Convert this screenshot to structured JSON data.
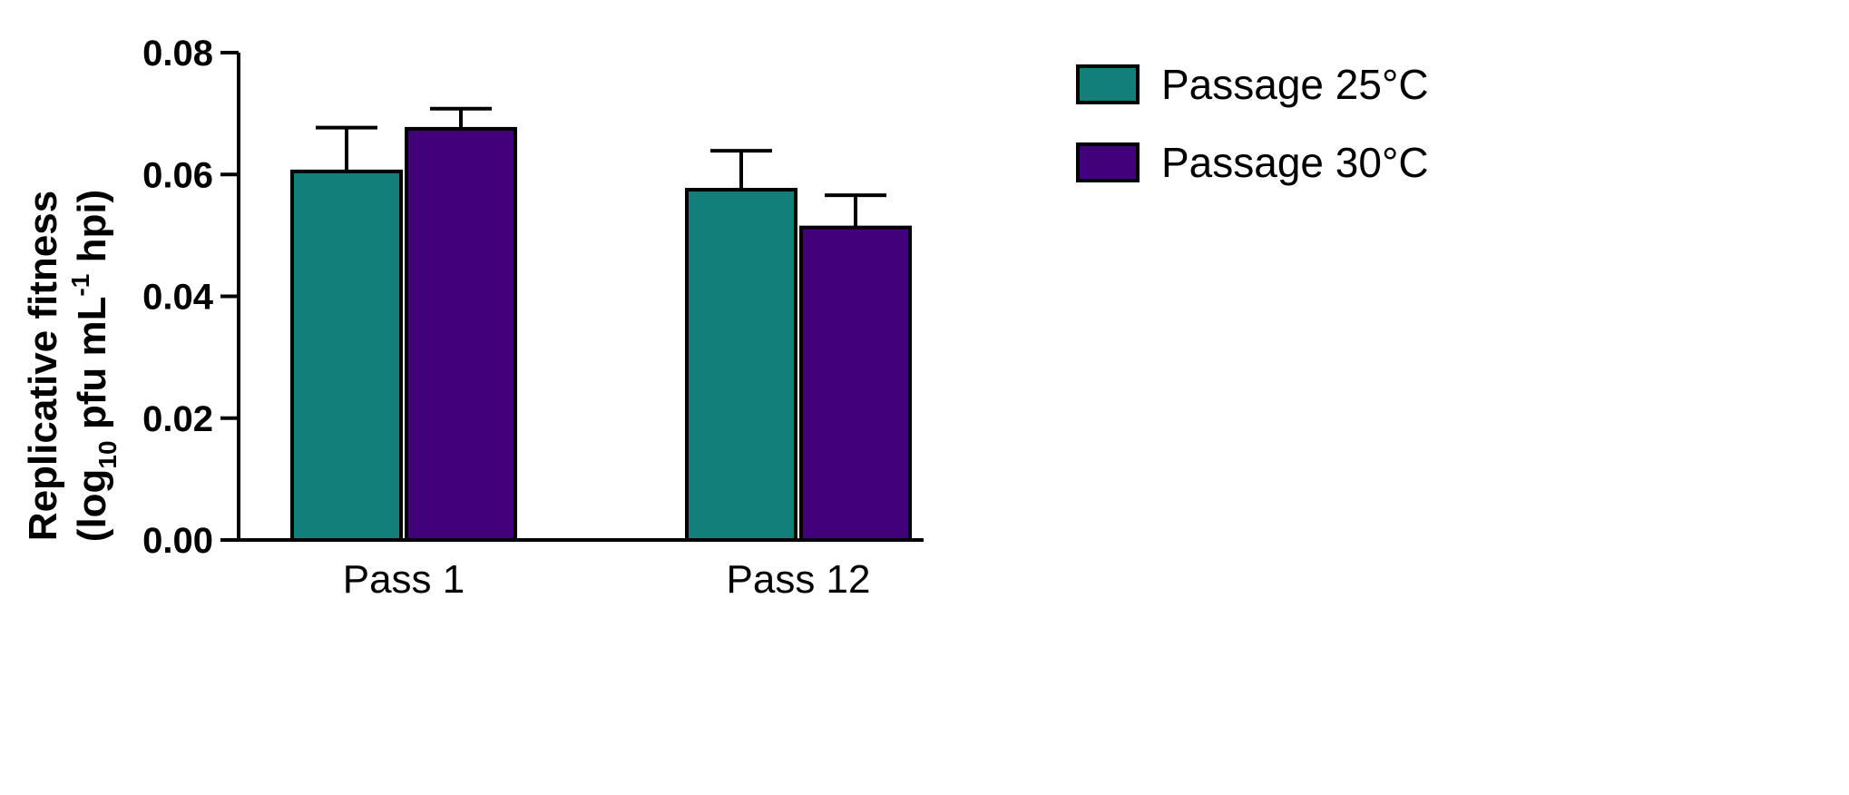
{
  "chart_data": {
    "type": "bar",
    "categories": [
      "Pass 1",
      "Pass 12"
    ],
    "series": [
      {
        "name": "Passage 25°C",
        "values": [
          0.0605,
          0.0575
        ],
        "errors": [
          0.0072,
          0.0064
        ],
        "color": "#137f7b"
      },
      {
        "name": "Passage 30°C",
        "values": [
          0.0675,
          0.0513
        ],
        "errors": [
          0.0033,
          0.0053
        ],
        "color": "#42007a"
      }
    ],
    "ylim": [
      0,
      0.08
    ],
    "yticks": [
      "0.00",
      "0.02",
      "0.04",
      "0.06",
      "0.08"
    ],
    "ylabel": {
      "line1": "Replicative fitness",
      "line2_prefix": "(log",
      "line2_sub": "10",
      "line2_mid": " pfu mL",
      "line2_sup": "-1",
      "line2_suffix": " hpi)"
    },
    "legend_position": "top-right",
    "grid": false
  }
}
